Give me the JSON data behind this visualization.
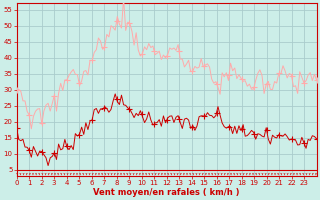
{
  "background_color": "#cceee8",
  "grid_color": "#aacccc",
  "line_color_mean": "#cc0000",
  "line_color_gust": "#ffaaaa",
  "xlabel": "Vent moyen/en rafales ( km/h )",
  "ylabel_ticks": [
    5,
    10,
    15,
    20,
    25,
    30,
    35,
    40,
    45,
    50,
    55
  ],
  "xlim": [
    0,
    24
  ],
  "ylim": [
    3,
    57
  ],
  "xlabel_color": "#cc0000",
  "tick_color": "#cc0000",
  "arrow_color": "#cc0000",
  "mean_wind": [
    16,
    15,
    14,
    14,
    13,
    12,
    11,
    11,
    11,
    10,
    10,
    11,
    10,
    10,
    9,
    8,
    8,
    9,
    10,
    10,
    11,
    11,
    12,
    12,
    12,
    13,
    13,
    14,
    15,
    16,
    17,
    17,
    18,
    19,
    20,
    21,
    22,
    22,
    22,
    23,
    23,
    24,
    24,
    25,
    25,
    26,
    26,
    26,
    26,
    26,
    26,
    25,
    25,
    24,
    24,
    23,
    23,
    22,
    22,
    22,
    22,
    22,
    21,
    21,
    21,
    20,
    21,
    21,
    21,
    20,
    20,
    20,
    21,
    20,
    20,
    20,
    21,
    21,
    20,
    20,
    20,
    20,
    20,
    19,
    19,
    18,
    19,
    20,
    20,
    21,
    21,
    22,
    22,
    22,
    22,
    22,
    22,
    21,
    20,
    19,
    19,
    18,
    18,
    18,
    18,
    17,
    17,
    17,
    17,
    16,
    16,
    16,
    16,
    16,
    16,
    16,
    16,
    16,
    16,
    16,
    15,
    14,
    15,
    15,
    15,
    15,
    15,
    15,
    15,
    15,
    15,
    15,
    15,
    14,
    14,
    15,
    15,
    15,
    14,
    14,
    15,
    15,
    16,
    16
  ],
  "gust_wind": [
    32,
    31,
    30,
    28,
    27,
    26,
    22,
    21,
    22,
    22,
    22,
    21,
    22,
    22,
    23,
    24,
    25,
    25,
    25,
    26,
    28,
    30,
    31,
    32,
    35,
    36,
    37,
    36,
    35,
    33,
    33,
    33,
    34,
    35,
    37,
    38,
    40,
    41,
    42,
    44,
    45,
    46,
    46,
    46,
    47,
    48,
    49,
    50,
    51,
    52,
    53,
    55,
    52,
    50,
    49,
    48,
    47,
    46,
    45,
    43,
    42,
    42,
    42,
    43,
    44,
    44,
    43,
    42,
    41,
    40,
    40,
    41,
    42,
    43,
    43,
    42,
    42,
    41,
    40,
    40,
    39,
    38,
    38,
    37,
    36,
    36,
    37,
    38,
    38,
    37,
    37,
    36,
    35,
    34,
    33,
    32,
    31,
    32,
    33,
    34,
    34,
    35,
    36,
    37,
    37,
    36,
    35,
    34,
    33,
    32,
    31,
    30,
    31,
    32,
    33,
    34,
    34,
    33,
    32,
    31,
    30,
    30,
    31,
    32,
    33,
    34,
    35,
    35,
    35,
    35,
    34,
    33,
    32,
    32,
    33,
    34,
    35,
    36,
    36,
    35,
    34,
    33,
    34,
    35
  ]
}
